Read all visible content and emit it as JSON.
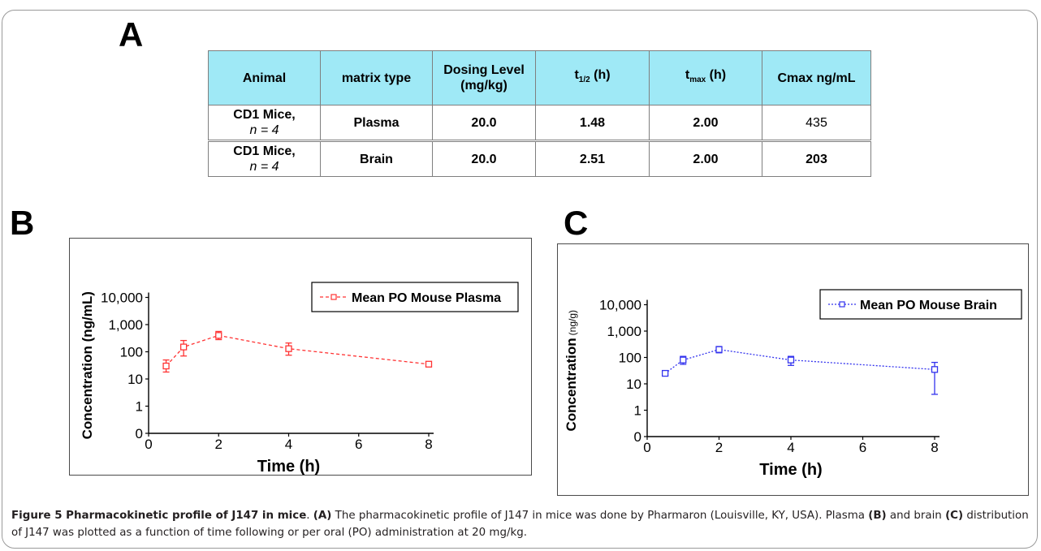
{
  "panels": {
    "a": "A",
    "b": "B",
    "c": "C"
  },
  "table": {
    "headers": [
      "Animal",
      "matrix type",
      "Dosing Level (mg/kg)",
      "t1/2 (h)",
      "tmax (h)",
      "Cmax ng/mL"
    ],
    "header_parts": {
      "dosing_line1": "Dosing Level",
      "dosing_line2": "(mg/kg)",
      "thalf_main": "t",
      "thalf_sub": "1/2",
      "thalf_unit": " (h)",
      "tmax_main": "t",
      "tmax_sub": "max",
      "tmax_unit": " (h)"
    },
    "rows": [
      {
        "animal": "CD1 Mice,",
        "n": "n = 4",
        "matrix": "Plasma",
        "dose": "20.0",
        "thalf": "1.48",
        "tmax": "2.00",
        "cmax": "435"
      },
      {
        "animal": "CD1 Mice,",
        "n": "n = 4",
        "matrix": "Brain",
        "dose": "20.0",
        "thalf": "2.51",
        "tmax": "2.00",
        "cmax": "203"
      }
    ]
  },
  "chart_data": [
    {
      "type": "line",
      "panel": "B",
      "title": "",
      "xlabel": "Time (h)",
      "ylabel": "Concentration (ng/mL)",
      "xlim": [
        0,
        8
      ],
      "ylim": [
        0,
        10000
      ],
      "y_scale": "log",
      "x_ticks": [
        "0",
        "2",
        "4",
        "6",
        "8"
      ],
      "y_ticks": [
        "0",
        "1",
        "10",
        "100",
        "1,000",
        "10,000"
      ],
      "legend_position": "top-right",
      "color": "#ff3333",
      "series": [
        {
          "name": "Mean PO Mouse Plasma",
          "x": [
            0.5,
            1,
            2,
            4,
            8
          ],
          "y": [
            30,
            150,
            400,
            130,
            35
          ],
          "err_low": [
            18,
            70,
            280,
            75,
            30
          ],
          "err_high": [
            50,
            260,
            560,
            210,
            40
          ]
        }
      ]
    },
    {
      "type": "line",
      "panel": "C",
      "title": "",
      "xlabel": "Time (h)",
      "ylabel": "Concentration",
      "ylabel_unit": "(ng/g)",
      "xlim": [
        0,
        8
      ],
      "ylim": [
        0,
        10000
      ],
      "y_scale": "log",
      "x_ticks": [
        "0",
        "2",
        "4",
        "6",
        "8"
      ],
      "y_ticks": [
        "0",
        "1",
        "10",
        "100",
        "1,000",
        "10,000"
      ],
      "legend_position": "top-right",
      "color": "#3333ee",
      "series": [
        {
          "name": "Mean PO Mouse Brain",
          "x": [
            0.5,
            1,
            2,
            4,
            8
          ],
          "y": [
            25,
            80,
            200,
            80,
            35
          ],
          "err_low": [
            20,
            55,
            150,
            50,
            4
          ],
          "err_high": [
            30,
            110,
            260,
            110,
            65
          ]
        }
      ]
    }
  ],
  "caption": {
    "lead": "Figure 5 Pharmacokinetic profile of J147 in mice",
    "sep1": ". ",
    "ref_a": "(A)",
    "text1": " The pharmacokinetic profile of J147 in mice was done by Pharmaron (Louisville, KY, USA). Plasma ",
    "ref_b": "(B)",
    "text2": " and brain ",
    "ref_c": "(C)",
    "text3": " distribution of J147 was plotted as a function of time following or per oral (PO) administration at 20 mg/kg."
  }
}
